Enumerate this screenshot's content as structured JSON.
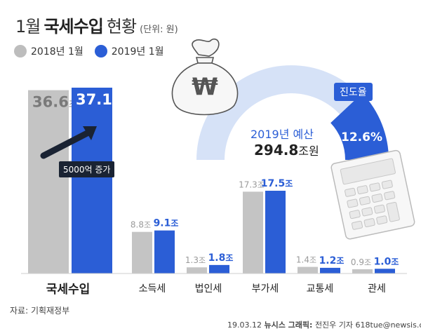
{
  "header": {
    "title_prefix": "1월",
    "title_main": "국세수입",
    "title_suffix": "현황",
    "unit": "(단위: 원)"
  },
  "legend": [
    {
      "label": "2018년 1월",
      "color": "#bdbdbd"
    },
    {
      "label": "2019년 1월",
      "color": "#2b5ed6"
    }
  ],
  "budget": {
    "label": "2019년 예산",
    "amount_num": "294.8",
    "amount_unit": "조원",
    "progress_title": "진도율",
    "progress_value": "12.6%",
    "progress_fraction": 0.126
  },
  "annotation": {
    "label": "5000억 증가"
  },
  "chart_data": {
    "type": "bar",
    "categories": [
      "국세수입",
      "소득세",
      "법인세",
      "부가세",
      "교통세",
      "관세"
    ],
    "series": [
      {
        "name": "2018년 1월",
        "values": [
          36.6,
          8.8,
          1.3,
          17.3,
          1.4,
          0.9
        ]
      },
      {
        "name": "2019년 1월",
        "values": [
          37.1,
          9.1,
          1.8,
          17.5,
          1.2,
          1.0
        ]
      }
    ],
    "value_labels": {
      "2018": [
        "36.6",
        "8.8",
        "1.3",
        "17.3",
        "1.4",
        "0.9"
      ],
      "2019": [
        "37.1",
        "9.1",
        "1.8",
        "17.5",
        "1.2",
        "1.0"
      ]
    },
    "value_unit": "조",
    "colors": [
      "#c4c4c4",
      "#2b5ed6"
    ]
  },
  "footer": {
    "source": "자료: 기획재정부",
    "credit_date": "19.03.12",
    "credit_org": "뉴시스 그래픽:",
    "credit_author": "전진우 기자 618tue@newsis.com"
  },
  "icons": {
    "money_bag": "money-bag-icon",
    "calculator": "calculator-icon",
    "won_symbol": "₩"
  }
}
